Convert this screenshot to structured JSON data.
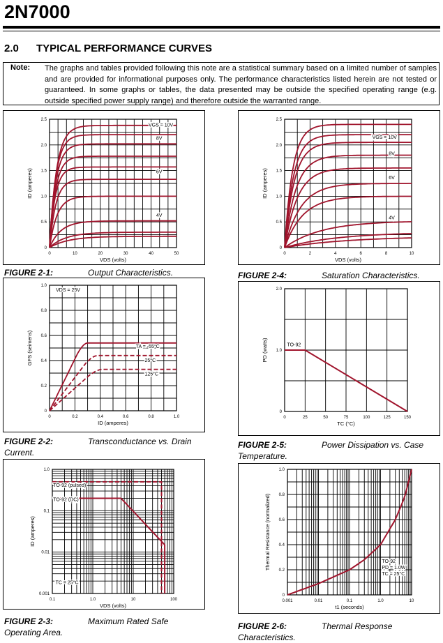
{
  "header": {
    "title": "2N7000"
  },
  "section": {
    "number": "2.0",
    "title": "TYPICAL PERFORMANCE CURVES"
  },
  "note": {
    "label": "Note:",
    "text": "The graphs and tables provided following this note are a statistical summary based on a limited number of samples and are provided for informational purposes only. The performance characteristics listed herein are not tested or guaranteed. In some graphs or tables, the data presented may be outside the specified operating range (e.g. outside specified power supply range) and therefore outside the warranted range."
  },
  "colors": {
    "curve": "#a0142c",
    "grid": "#000000"
  },
  "figures": [
    {
      "fig_label": "FIGURE 2-1:",
      "caption": "Output Characteristics."
    },
    {
      "fig_label": "FIGURE 2-2:",
      "caption": "Transconductance vs. Drain",
      "caption_line2": "Current."
    },
    {
      "fig_label": "FIGURE 2-3:",
      "caption": "Maximum Rated Safe",
      "caption_line2": "Operating Area."
    },
    {
      "fig_label": "FIGURE 2-4:",
      "caption": "Saturation Characteristics."
    },
    {
      "fig_label": "FIGURE 2-5:",
      "caption": "Power Dissipation vs. Case",
      "caption_line2": "Temperature."
    },
    {
      "fig_label": "FIGURE 2-6:",
      "caption": "Thermal Response",
      "caption_line2": "Characteristics."
    }
  ],
  "chart_data": [
    {
      "id": "fig-2-1",
      "type": "line",
      "xlabel": "VDS (volts)",
      "ylabel": "ID (amperes)",
      "xlim": [
        0,
        50
      ],
      "ylim": [
        0,
        2.5
      ],
      "xticks": [
        0,
        10,
        20,
        30,
        40,
        50
      ],
      "xtick_labels": [
        "0",
        "10",
        "20",
        "30",
        "40",
        "50"
      ],
      "yticks": [
        0,
        0.5,
        1.0,
        1.5,
        2.0,
        2.5
      ],
      "ytick_labels": [
        "0",
        "0.5",
        "1.0",
        "1.5",
        "2.0",
        "2.5"
      ],
      "annotations": [
        {
          "text": "VGS = 10V",
          "x": 39,
          "y": 2.36
        },
        {
          "text": "8V",
          "x": 42,
          "y": 2.1
        },
        {
          "text": "6V",
          "x": 42,
          "y": 1.45
        },
        {
          "text": "4V",
          "x": 42,
          "y": 0.6
        }
      ],
      "series": [
        {
          "sat": 2.38,
          "k": 0.55
        },
        {
          "sat": 2.2,
          "k": 0.5
        },
        {
          "sat": 2.02,
          "k": 0.5
        },
        {
          "sat": 1.78,
          "k": 0.48
        },
        {
          "sat": 1.57,
          "k": 0.45
        },
        {
          "sat": 1.33,
          "k": 0.5
        },
        {
          "sat": 1.0,
          "k": 0.6
        },
        {
          "sat": 0.52,
          "k": 0.9
        },
        {
          "sat": 0.3,
          "k": 1.3
        },
        {
          "sat": 0.22,
          "k": 1.5
        }
      ]
    },
    {
      "id": "fig-2-4",
      "type": "line",
      "xlabel": "VDS (volts)",
      "ylabel": "ID (amperes)",
      "xlim": [
        0,
        10
      ],
      "ylim": [
        0,
        2.5
      ],
      "xticks": [
        0,
        2,
        4,
        6,
        8,
        10
      ],
      "xtick_labels": [
        "0",
        "2",
        "4",
        "6",
        "8",
        "10"
      ],
      "yticks": [
        0,
        0.5,
        1.0,
        1.5,
        2.0,
        2.5
      ],
      "ytick_labels": [
        "0",
        "0.5",
        "1.0",
        "1.5",
        "2.0",
        "2.5"
      ],
      "annotations": [
        {
          "text": "VGS = 10V",
          "x": 6.9,
          "y": 2.12
        },
        {
          "text": "8V",
          "x": 8.2,
          "y": 1.8
        },
        {
          "text": "6V",
          "x": 8.2,
          "y": 1.33
        },
        {
          "text": "4V",
          "x": 8.2,
          "y": 0.55
        }
      ],
      "series": [
        {
          "sat": 2.4,
          "k": 0.2
        },
        {
          "sat": 2.2,
          "k": 0.22
        },
        {
          "sat": 2.05,
          "k": 0.24
        },
        {
          "sat": 1.8,
          "k": 0.28
        },
        {
          "sat": 1.55,
          "k": 0.32
        },
        {
          "sat": 1.25,
          "k": 0.4
        },
        {
          "sat": 1.0,
          "k": 0.45
        },
        {
          "sat": 0.52,
          "k": 0.9
        },
        {
          "sat": 0.3,
          "k": 1.3
        },
        {
          "sat": 0.22,
          "k": 1.6
        }
      ]
    },
    {
      "id": "fig-2-2",
      "type": "line",
      "xlabel": "ID (amperes)",
      "ylabel": "GFS (seimens)",
      "xlim": [
        0,
        1.0
      ],
      "ylim": [
        0,
        1.0
      ],
      "xticks": [
        0,
        0.2,
        0.4,
        0.6,
        0.8,
        1.0
      ],
      "xtick_labels": [
        "0",
        "0.2",
        "0.4",
        "0.6",
        "0.8",
        "1.0"
      ],
      "yticks": [
        0,
        0.2,
        0.4,
        0.6,
        0.8,
        1.0
      ],
      "ytick_labels": [
        "0",
        "0.2",
        "0.4",
        "0.6",
        "0.8",
        "1.0"
      ],
      "annotations": [
        {
          "text": "VDS = 25V",
          "x": 0.05,
          "y": 0.95
        },
        {
          "text": "TA = -55°C",
          "x": 0.68,
          "y": 0.5
        },
        {
          "text": "25°C",
          "x": 0.75,
          "y": 0.39
        },
        {
          "text": "125°C",
          "x": 0.75,
          "y": 0.28
        }
      ],
      "series": [
        {
          "name": "TA = -55°C",
          "sat": 0.54,
          "x0": 0.3
        },
        {
          "name": "25°C",
          "sat": 0.44,
          "x0": 0.38
        },
        {
          "name": "125°C",
          "sat": 0.33,
          "x0": 0.42
        }
      ]
    },
    {
      "id": "fig-2-5",
      "type": "line",
      "xlabel": "TC (°C)",
      "ylabel": "PD (watts)",
      "xlim": [
        0,
        150
      ],
      "ylim": [
        0,
        2.0
      ],
      "xticks": [
        0,
        25,
        50,
        75,
        100,
        125,
        150
      ],
      "xtick_labels": [
        "0",
        "25",
        "50",
        "75",
        "100",
        "125",
        "150"
      ],
      "yticks": [
        0,
        1.0,
        2.0
      ],
      "ytick_labels": [
        "0",
        "1.0",
        "2.0"
      ],
      "annotations": [
        {
          "text": "TO-92",
          "x": 3,
          "y": 1.06
        }
      ],
      "series": [
        {
          "name": "TO-92",
          "x": [
            0,
            25,
            150
          ],
          "y": [
            1.0,
            1.0,
            0
          ]
        }
      ]
    },
    {
      "id": "fig-2-3",
      "type": "line",
      "xlabel": "VDS (volts)",
      "ylabel": "ID (amperes)",
      "xscale": "log",
      "yscale": "log",
      "xlim": [
        0.1,
        100
      ],
      "ylim": [
        0.001,
        1.0
      ],
      "xticks": [
        0.1,
        1,
        10,
        100
      ],
      "xtick_labels": [
        "0.1",
        "1.0",
        "10",
        "100"
      ],
      "yticks": [
        0.001,
        0.01,
        0.1,
        1.0
      ],
      "ytick_labels": [
        "0.001",
        "0.01",
        "0.1",
        "1.0"
      ],
      "annotations": [
        {
          "text": "TO-92 (pulsed)",
          "x": 0.105,
          "y": 0.38
        },
        {
          "text": "TO-92 (DC)",
          "x": 0.105,
          "y": 0.17
        },
        {
          "text": "TC = 25°C",
          "x": 0.12,
          "y": 0.0017
        }
      ],
      "series": [
        {
          "name": "TO-92 (pulsed)",
          "style": "dashed",
          "x": [
            0.1,
            50,
            50
          ],
          "y": [
            0.5,
            0.5,
            0.001
          ]
        },
        {
          "name": "TO-92 (DC)",
          "style": "solid",
          "x": [
            0.1,
            5,
            60,
            60
          ],
          "y": [
            0.2,
            0.2,
            0.015,
            0.001
          ]
        }
      ]
    },
    {
      "id": "fig-2-6",
      "type": "line",
      "xlabel": "t1 (seconds)",
      "ylabel": "Thermal Resistance (normalized)",
      "xscale": "log",
      "xlim": [
        0.001,
        10
      ],
      "ylim": [
        0,
        1.0
      ],
      "xticks": [
        0.001,
        0.01,
        0.1,
        1,
        10
      ],
      "xtick_labels": [
        "0.001",
        "0.01",
        "0.1",
        "1.0",
        "10"
      ],
      "yticks": [
        0,
        0.2,
        0.4,
        0.6,
        0.8,
        1.0
      ],
      "ytick_labels": [
        "0",
        "0.2",
        "0.4",
        "0.6",
        "0.8",
        "1.0"
      ],
      "annotations": [
        {
          "text": "TO-92",
          "x": 1.1,
          "y": 0.255
        },
        {
          "text": "PD = 1.0W",
          "x": 1.1,
          "y": 0.205
        },
        {
          "text": "TC = 25°C",
          "x": 1.1,
          "y": 0.155
        }
      ],
      "series": [
        {
          "name": "TO-92",
          "x": [
            0.001,
            0.01,
            0.1,
            0.3,
            1,
            3,
            6,
            10
          ],
          "y": [
            0,
            0.09,
            0.2,
            0.28,
            0.4,
            0.6,
            0.78,
            1.0
          ]
        }
      ]
    }
  ]
}
